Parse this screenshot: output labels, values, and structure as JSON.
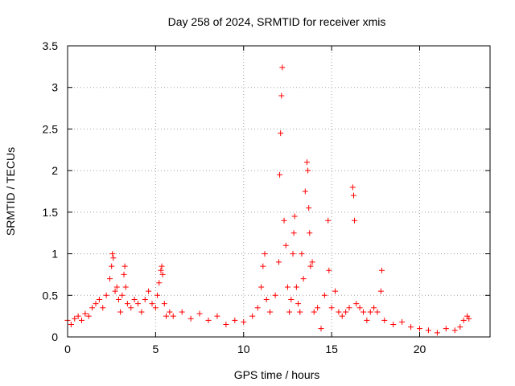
{
  "chart_data": {
    "type": "scatter",
    "title": "Day 258 of 2024, SRMTID for receiver xmis",
    "xlabel": "GPS time / hours",
    "ylabel": "SRMTID / TECUs",
    "xlim": [
      0,
      24
    ],
    "ylim": [
      0,
      3.5
    ],
    "xticks": [
      0,
      5,
      10,
      15,
      20
    ],
    "yticks": [
      0,
      0.5,
      1,
      1.5,
      2,
      2.5,
      3,
      3.5
    ],
    "xtick_labels": [
      "0",
      "5",
      "10",
      "15",
      "20"
    ],
    "ytick_labels": [
      "0",
      "0.5",
      "1",
      "1.5",
      "2",
      "2.5",
      "3",
      "3.5"
    ],
    "grid": true,
    "marker": "+",
    "series": [
      {
        "name": "SRMTID",
        "color": "#ff0000",
        "x": [
          0.0,
          0.2,
          0.4,
          0.6,
          0.8,
          1.0,
          1.2,
          1.4,
          1.6,
          1.8,
          2.0,
          2.2,
          2.4,
          2.5,
          2.55,
          2.6,
          2.7,
          2.8,
          2.9,
          3.0,
          3.1,
          3.2,
          3.25,
          3.3,
          3.4,
          3.6,
          3.8,
          4.0,
          4.2,
          4.4,
          4.6,
          4.8,
          5.0,
          5.1,
          5.2,
          5.3,
          5.35,
          5.4,
          5.5,
          5.6,
          5.8,
          6.0,
          6.5,
          7.0,
          7.5,
          8.0,
          8.5,
          9.0,
          9.5,
          10.0,
          10.5,
          10.8,
          11.0,
          11.1,
          11.2,
          11.3,
          11.5,
          11.8,
          12.0,
          12.05,
          12.1,
          12.15,
          12.2,
          12.3,
          12.4,
          12.5,
          12.6,
          12.7,
          12.8,
          12.85,
          12.9,
          13.0,
          13.1,
          13.2,
          13.3,
          13.4,
          13.5,
          13.6,
          13.65,
          13.7,
          13.75,
          13.8,
          13.9,
          14.0,
          14.2,
          14.4,
          14.6,
          14.8,
          14.85,
          15.0,
          15.2,
          15.4,
          15.6,
          15.8,
          16.0,
          16.2,
          16.25,
          16.3,
          16.4,
          16.6,
          16.8,
          17.0,
          17.2,
          17.4,
          17.6,
          17.8,
          17.85,
          18.0,
          18.5,
          19.0,
          19.5,
          20.0,
          20.5,
          21.0,
          21.5,
          22.0,
          22.3,
          22.5,
          22.7,
          22.8
        ],
        "y": [
          0.2,
          0.15,
          0.22,
          0.25,
          0.2,
          0.28,
          0.25,
          0.35,
          0.4,
          0.45,
          0.35,
          0.5,
          0.7,
          0.85,
          1.0,
          0.95,
          0.55,
          0.6,
          0.45,
          0.3,
          0.5,
          0.75,
          0.85,
          0.6,
          0.4,
          0.35,
          0.45,
          0.4,
          0.3,
          0.45,
          0.55,
          0.4,
          0.35,
          0.5,
          0.65,
          0.8,
          0.85,
          0.75,
          0.4,
          0.25,
          0.3,
          0.25,
          0.3,
          0.22,
          0.28,
          0.2,
          0.25,
          0.15,
          0.2,
          0.18,
          0.25,
          0.35,
          0.6,
          0.85,
          1.0,
          0.45,
          0.3,
          0.5,
          0.9,
          1.95,
          2.45,
          2.9,
          3.24,
          1.4,
          1.1,
          0.6,
          0.3,
          0.45,
          1.0,
          1.25,
          1.45,
          0.6,
          0.4,
          0.3,
          1.0,
          0.7,
          1.75,
          2.1,
          2.0,
          1.55,
          1.25,
          0.85,
          0.9,
          0.3,
          0.35,
          0.1,
          0.5,
          1.4,
          0.8,
          0.35,
          0.55,
          0.3,
          0.25,
          0.3,
          0.35,
          1.8,
          1.7,
          1.4,
          0.4,
          0.35,
          0.3,
          0.2,
          0.3,
          0.35,
          0.3,
          0.55,
          0.8,
          0.2,
          0.15,
          0.18,
          0.12,
          0.1,
          0.08,
          0.05,
          0.1,
          0.08,
          0.12,
          0.2,
          0.25,
          0.22
        ]
      }
    ]
  }
}
